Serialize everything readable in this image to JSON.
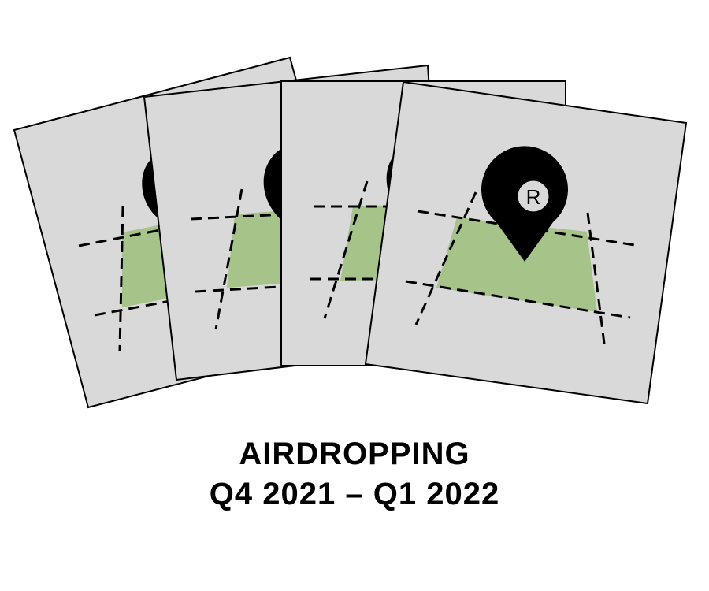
{
  "caption": {
    "line1": "AIRDROPPING",
    "line2": "Q4 2021 – Q1 2022"
  },
  "marker": {
    "letter": "R",
    "icon": "map-pin-icon"
  },
  "colors": {
    "card_fill": "#d9d9d9",
    "card_border": "#000000",
    "region_fill": "#a6c38a",
    "marker_fill": "#000000",
    "marker_badge": "#d9d9d9"
  },
  "cards": [
    {
      "name": "map-card-1"
    },
    {
      "name": "map-card-2"
    },
    {
      "name": "map-card-3"
    },
    {
      "name": "map-card-4"
    }
  ]
}
